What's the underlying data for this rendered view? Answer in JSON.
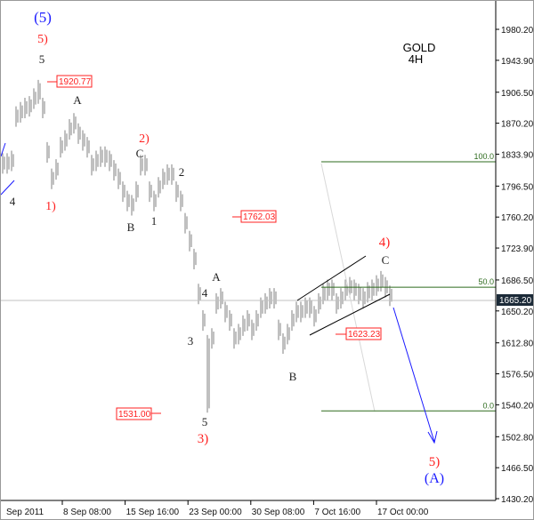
{
  "chart_data": {
    "type": "ohlc",
    "title": "GOLD",
    "subtitle": "4H",
    "ylim": [
      1430.2,
      1980.2
    ],
    "y_ticks": [
      "1980.20",
      "1943.90",
      "1906.50",
      "1870.20",
      "1833.90",
      "1796.50",
      "1760.20",
      "1723.90",
      "1686.50",
      "1650.20",
      "1612.80",
      "1576.50",
      "1540.20",
      "1502.80",
      "1466.50",
      "1430.20"
    ],
    "x_ticks": [
      "Sep 2011",
      "8 Sep 08:00",
      "15 Sep 16:00",
      "23 Sep 00:00",
      "30 Sep 08:00",
      "7 Oct 16:00",
      "17 Oct 00:00"
    ],
    "current_price": "1665.20",
    "bars_high": [
      1835,
      1835,
      1838,
      1890,
      1895,
      1900,
      1902,
      1911,
      1921,
      1900,
      1848,
      1817,
      1828,
      1854,
      1862,
      1875,
      1882,
      1870,
      1862,
      1854,
      1833,
      1838,
      1843,
      1843,
      1838,
      1827,
      1817,
      1802,
      1791,
      1786,
      1802,
      1833,
      1833,
      1802,
      1791,
      1807,
      1817,
      1822,
      1822,
      1802,
      1791,
      1765,
      1744,
      1723,
      1682,
      1651,
      1622,
      1630,
      1671,
      1677,
      1661,
      1651,
      1630,
      1635,
      1645,
      1651,
      1640,
      1651,
      1666,
      1671,
      1677,
      1677,
      1640,
      1624,
      1635,
      1651,
      1661,
      1661,
      1666,
      1666,
      1656,
      1671,
      1682,
      1687,
      1687,
      1671,
      1677,
      1687,
      1690,
      1687,
      1682,
      1677,
      1684,
      1687,
      1692,
      1697,
      1690,
      1680
    ],
    "bars_low": [
      1811,
      1811,
      1814,
      1866,
      1871,
      1876,
      1878,
      1887,
      1893,
      1876,
      1824,
      1793,
      1804,
      1830,
      1838,
      1851,
      1858,
      1846,
      1838,
      1830,
      1809,
      1814,
      1819,
      1819,
      1814,
      1803,
      1793,
      1778,
      1767,
      1762,
      1778,
      1809,
      1809,
      1778,
      1767,
      1783,
      1793,
      1798,
      1798,
      1778,
      1767,
      1741,
      1720,
      1699,
      1658,
      1627,
      1531,
      1606,
      1647,
      1653,
      1637,
      1627,
      1606,
      1611,
      1621,
      1627,
      1616,
      1627,
      1642,
      1647,
      1653,
      1653,
      1616,
      1600,
      1611,
      1627,
      1637,
      1637,
      1642,
      1642,
      1632,
      1647,
      1658,
      1663,
      1663,
      1647,
      1653,
      1663,
      1666,
      1663,
      1658,
      1653,
      1660,
      1663,
      1668,
      1673,
      1666,
      1656
    ],
    "fib_levels": [
      {
        "label": "100.0",
        "price": 1825
      },
      {
        "label": "50.0",
        "price": 1678
      },
      {
        "label": "0.0",
        "price": 1533
      }
    ],
    "price_labels": [
      "1920.77",
      "1762.03",
      "1623.23",
      "1531.00"
    ],
    "wave_labels": {
      "top_blue": "(5)",
      "top_red": "5)",
      "top_black": "5",
      "a1": "A",
      "red2": "2)",
      "c1": "C",
      "n2": "2",
      "n4": "4",
      "red1": "1)",
      "b1": "B",
      "n1": "1",
      "a2": "A",
      "n4b": "4",
      "n3": "3",
      "n5": "5",
      "red3": "3)",
      "b2": "B",
      "red4": "4)",
      "c2": "C",
      "red5": "5)",
      "blueA": "(A)"
    },
    "colors": {
      "bars": "#808080",
      "red": "#ff2020",
      "blue": "#1a1aff",
      "fib": "#2e6b1e",
      "axis": "#000000"
    }
  }
}
